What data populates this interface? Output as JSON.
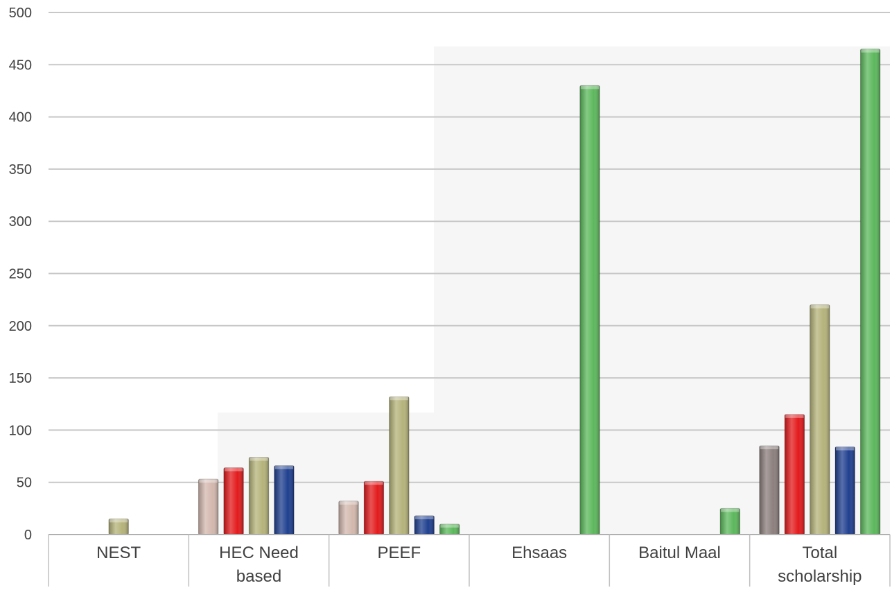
{
  "chart_data": {
    "type": "bar",
    "title": "",
    "xlabel": "",
    "ylabel": "",
    "ylim": [
      0,
      500
    ],
    "yticks": [
      0,
      50,
      100,
      150,
      200,
      250,
      300,
      350,
      400,
      450,
      500
    ],
    "grid": true,
    "legend": "none",
    "categories": [
      [
        "NEST"
      ],
      [
        "HEC Need",
        "based"
      ],
      [
        "PEEF"
      ],
      [
        "Ehsaas"
      ],
      [
        "Baitul Maal"
      ],
      [
        "Total",
        "scholarship"
      ]
    ],
    "series": [
      {
        "color": "#d3b8ae",
        "values": [
          0,
          53,
          32,
          0,
          0,
          85
        ]
      },
      {
        "color": "#e31a1c",
        "values": [
          0,
          64,
          51,
          0,
          0,
          115
        ]
      },
      {
        "color": "#b5b37a",
        "values": [
          15,
          74,
          132,
          0,
          0,
          220
        ]
      },
      {
        "color": "#1f3f8f",
        "values": [
          0,
          66,
          18,
          0,
          0,
          84
        ]
      },
      {
        "color": "#5cb85c",
        "values": [
          0,
          0,
          10,
          430,
          25,
          465
        ]
      }
    ],
    "total_series_first_color": "#8c7f7d"
  }
}
